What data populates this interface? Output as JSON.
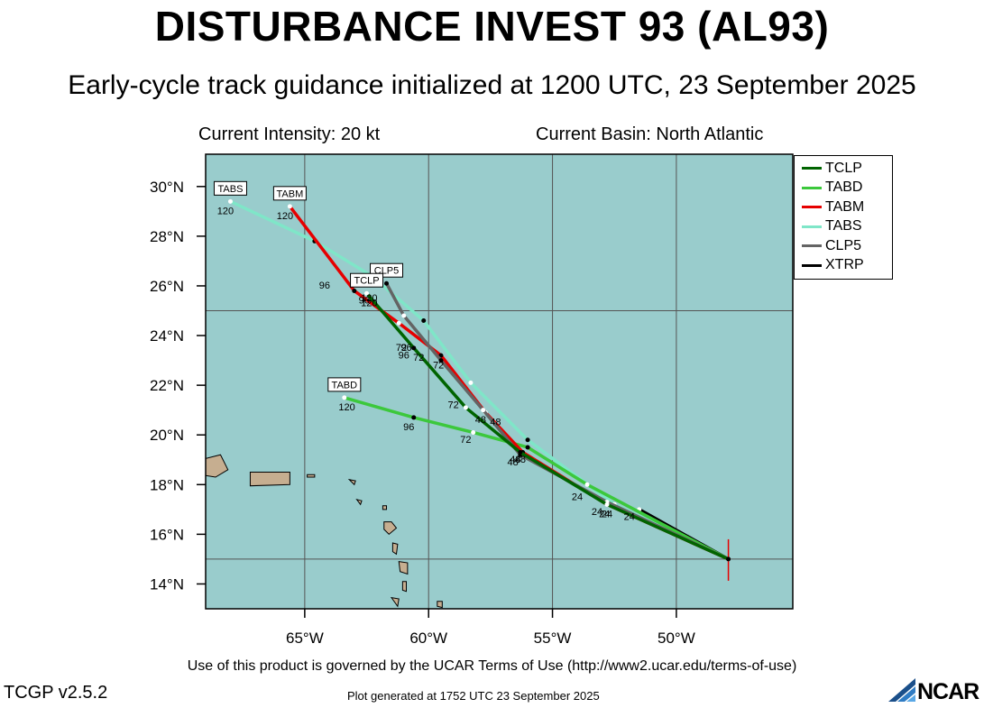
{
  "title": "DISTURBANCE INVEST 93 (AL93)",
  "subtitle": "Early-cycle track guidance initialized at 1200 UTC, 23 September 2025",
  "info": {
    "intensity": "Current Intensity: 20 kt",
    "basin": "Current Basin: North Atlantic"
  },
  "map": {
    "lon_range": [
      -69,
      -45.3
    ],
    "lat_range": [
      13,
      31.3
    ],
    "lon_ticks": [
      -65,
      -60,
      -55,
      -50
    ],
    "lon_tick_labels": [
      "65°W",
      "60°W",
      "55°W",
      "50°W"
    ],
    "lat_ticks": [
      14,
      16,
      18,
      20,
      22,
      24,
      26,
      28,
      30
    ],
    "lat_tick_labels": [
      "14°N",
      "16°N",
      "18°N",
      "20°N",
      "22°N",
      "24°N",
      "26°N",
      "28°N",
      "30°N"
    ],
    "grid_lons": [
      -65,
      -60,
      -55,
      -50
    ],
    "grid_lats": [
      15,
      25
    ],
    "ocean_color": "#99cccc",
    "land_color": "#c6ae90",
    "start_point": {
      "lon": -47.9,
      "lat": 15.0
    }
  },
  "legend": [
    {
      "name": "TCLP",
      "color": "#006400"
    },
    {
      "name": "TABD",
      "color": "#3cc83c"
    },
    {
      "name": "TABM",
      "color": "#e60000"
    },
    {
      "name": "TABS",
      "color": "#7fe6c8"
    },
    {
      "name": "CLP5",
      "color": "#646464"
    },
    {
      "name": "XTRP",
      "color": "#000000"
    }
  ],
  "chart_data": {
    "type": "line",
    "x_axis": "longitude (degrees, negative = West)",
    "y_axis": "latitude (degrees North)",
    "series": [
      {
        "name": "TCLP",
        "color": "#006400",
        "points": [
          [
            -47.9,
            15.0
          ],
          [
            -52.8,
            17.2
          ],
          [
            -56.3,
            19.3
          ],
          [
            -58.5,
            21.1
          ],
          [
            -60.6,
            23.5
          ],
          [
            -62.5,
            25.7
          ]
        ],
        "hour_labels": [
          [
            24,
            -53.2,
            17.0
          ],
          [
            48,
            -56.3,
            19.1
          ],
          [
            72,
            -59.0,
            21.3
          ],
          [
            96,
            -61.0,
            23.3
          ],
          [
            120,
            -62.4,
            25.4
          ]
        ],
        "end_label": "TCLP"
      },
      {
        "name": "TABD",
        "color": "#3cc83c",
        "points": [
          [
            -47.9,
            15.0
          ],
          [
            -53.6,
            18.0
          ],
          [
            -56.0,
            19.5
          ],
          [
            -58.2,
            20.1
          ],
          [
            -60.6,
            20.7
          ],
          [
            -63.4,
            21.5
          ]
        ],
        "hour_labels": [
          [
            24,
            -54.0,
            17.6
          ],
          [
            48,
            -56.5,
            19.1
          ],
          [
            72,
            -58.5,
            19.9
          ],
          [
            96,
            -60.8,
            20.4
          ],
          [
            120,
            -63.3,
            21.2
          ]
        ],
        "end_label": "TABD"
      },
      {
        "name": "TABM",
        "color": "#e60000",
        "points": [
          [
            -47.9,
            15.0
          ],
          [
            -52.8,
            17.2
          ],
          [
            -56.2,
            19.3
          ],
          [
            -57.7,
            20.9
          ],
          [
            -59.5,
            23.2
          ],
          [
            -61.2,
            24.5
          ],
          [
            -63.0,
            25.8
          ],
          [
            -65.6,
            29.2
          ]
        ],
        "hour_labels": [
          [
            24,
            -52.8,
            16.9
          ],
          [
            48,
            -57.3,
            20.6
          ],
          [
            72,
            -59.6,
            22.9
          ],
          [
            96,
            -62.6,
            25.5
          ],
          [
            120,
            -65.8,
            28.9
          ]
        ],
        "end_label": "TABM"
      },
      {
        "name": "TABS",
        "color": "#7fe6c8",
        "points": [
          [
            -47.9,
            15.0
          ],
          [
            -52.5,
            17.2
          ],
          [
            -56.0,
            19.8
          ],
          [
            -58.3,
            22.1
          ],
          [
            -60.2,
            24.6
          ],
          [
            -62.3,
            26.4
          ],
          [
            -64.6,
            27.8
          ],
          [
            -68.0,
            29.4
          ]
        ],
        "hour_labels": [
          [
            24,
            -51.9,
            16.8
          ],
          [
            48,
            -56.6,
            19.0
          ],
          [
            72,
            -61.1,
            23.6
          ],
          [
            96,
            -64.2,
            26.1
          ],
          [
            120,
            -68.2,
            29.1
          ]
        ],
        "end_label": "TABS"
      },
      {
        "name": "CLP5",
        "color": "#646464",
        "points": [
          [
            -47.9,
            15.0
          ],
          [
            -52.8,
            17.3
          ],
          [
            -56.3,
            19.2
          ],
          [
            -57.8,
            21.0
          ],
          [
            -59.5,
            23.0
          ],
          [
            -61.0,
            24.8
          ],
          [
            -61.7,
            26.1
          ]
        ],
        "hour_labels": [
          [
            24,
            -52.9,
            16.9
          ],
          [
            48,
            -57.9,
            20.7
          ],
          [
            72,
            -60.4,
            23.2
          ],
          [
            96,
            -60.9,
            23.6
          ],
          [
            120,
            -62.4,
            25.6
          ]
        ],
        "end_label": "CLP5"
      },
      {
        "name": "XTRP",
        "color": "#000000",
        "points": [
          [
            -47.9,
            15.0
          ],
          [
            -51.5,
            17.0
          ]
        ],
        "hour_labels": [],
        "end_label": ""
      }
    ]
  },
  "footer": {
    "terms": "Use of this product is governed by the UCAR Terms of Use (http://www2.ucar.edu/terms-of-use)",
    "version": "TCGP v2.5.2",
    "generated": "Plot generated at 1752 UTC   23 September 2025",
    "logo": "NCAR"
  }
}
